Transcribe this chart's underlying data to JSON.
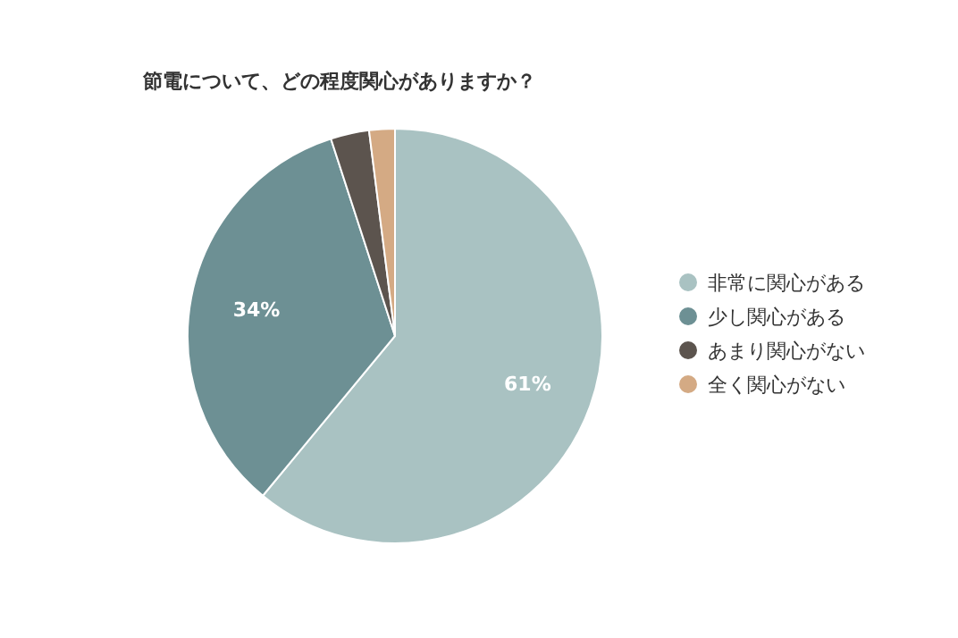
{
  "chart_data": {
    "type": "pie",
    "title": "節電について、どの程度関心がありますか？",
    "categories": [
      "非常に関心がある",
      "少し関心がある",
      "あまり関心がない",
      "全く関心がない"
    ],
    "values": [
      61,
      34,
      3,
      2
    ],
    "colors": [
      "#a9c2c2",
      "#6d9094",
      "#5c544e",
      "#d4aa84"
    ],
    "value_labels": [
      "61%",
      "34%",
      null,
      null
    ],
    "legend": "right"
  }
}
